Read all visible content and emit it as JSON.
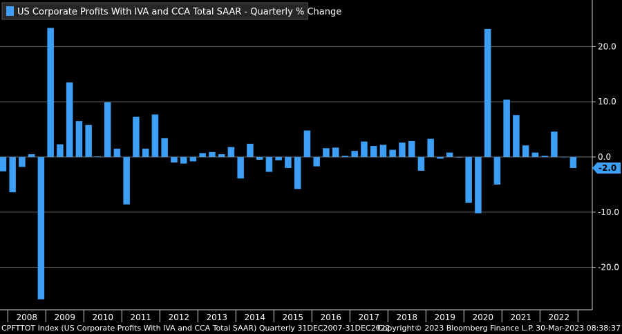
{
  "footer": {
    "left": "CPFTTOT Index (US Corporate Profits With IVA and CCA Total SAAR)  Quarterly 31DEC2007-31DEC2022",
    "center": "Copyright© 2023 Bloomberg Finance L.P.",
    "right": "30-Mar-2023 08:38:37"
  },
  "last_value_label": "-2.0",
  "colors": {
    "bar": "#3d9ef5",
    "grid": "#6e6e6e",
    "background": "#000000"
  },
  "chart_data": {
    "type": "bar",
    "title": "",
    "xlabel": "",
    "ylabel": "",
    "ylim": [
      -26,
      28
    ],
    "yticks": [
      -20.0,
      -10.0,
      0.0,
      10.0,
      20.0
    ],
    "ytick_labels": [
      "-20.0",
      "-10.0",
      "0.0",
      "10.0",
      "20.0"
    ],
    "grid": true,
    "legend_position": "top-left",
    "year_labels": [
      "2008",
      "2009",
      "2010",
      "2011",
      "2012",
      "2013",
      "2014",
      "2015",
      "2016",
      "2017",
      "2018",
      "2019",
      "2020",
      "2021",
      "2022"
    ],
    "series": [
      {
        "name": "US Corporate Profits With IVA and CCA Total SAAR - Quarterly % Change",
        "categories": [
          "Q4 2007",
          "Q1 2008",
          "Q2 2008",
          "Q3 2008",
          "Q4 2008",
          "Q1 2009",
          "Q2 2009",
          "Q3 2009",
          "Q4 2009",
          "Q1 2010",
          "Q2 2010",
          "Q3 2010",
          "Q4 2010",
          "Q1 2011",
          "Q2 2011",
          "Q3 2011",
          "Q4 2011",
          "Q1 2012",
          "Q2 2012",
          "Q3 2012",
          "Q4 2012",
          "Q1 2013",
          "Q2 2013",
          "Q3 2013",
          "Q4 2013",
          "Q1 2014",
          "Q2 2014",
          "Q3 2014",
          "Q4 2014",
          "Q1 2015",
          "Q2 2015",
          "Q3 2015",
          "Q4 2015",
          "Q1 2016",
          "Q2 2016",
          "Q3 2016",
          "Q4 2016",
          "Q1 2017",
          "Q2 2017",
          "Q3 2017",
          "Q4 2017",
          "Q1 2018",
          "Q2 2018",
          "Q3 2018",
          "Q4 2018",
          "Q1 2019",
          "Q2 2019",
          "Q3 2019",
          "Q4 2019",
          "Q1 2020",
          "Q2 2020",
          "Q3 2020",
          "Q4 2020",
          "Q1 2021",
          "Q2 2021",
          "Q3 2021",
          "Q4 2021",
          "Q1 2022",
          "Q2 2022",
          "Q3 2022",
          "Q4 2022"
        ],
        "values": [
          -2.6,
          -6.4,
          -1.8,
          0.5,
          -25.8,
          23.4,
          2.3,
          13.5,
          6.5,
          5.8,
          0.1,
          9.9,
          1.5,
          -8.6,
          7.3,
          1.5,
          7.7,
          3.4,
          -1.0,
          -1.2,
          -0.8,
          0.7,
          0.9,
          0.5,
          1.8,
          -3.9,
          2.4,
          -0.5,
          -2.7,
          -0.6,
          -2.0,
          -5.8,
          4.8,
          -1.7,
          1.6,
          1.7,
          0.2,
          1.1,
          2.8,
          2.0,
          2.2,
          1.3,
          2.6,
          2.9,
          -2.5,
          3.3,
          -0.3,
          0.8,
          -0.1,
          -8.3,
          -10.2,
          23.2,
          -5.0,
          10.4,
          7.6,
          2.1,
          0.8,
          0.2,
          4.6,
          0.0,
          -2.0
        ]
      }
    ]
  }
}
